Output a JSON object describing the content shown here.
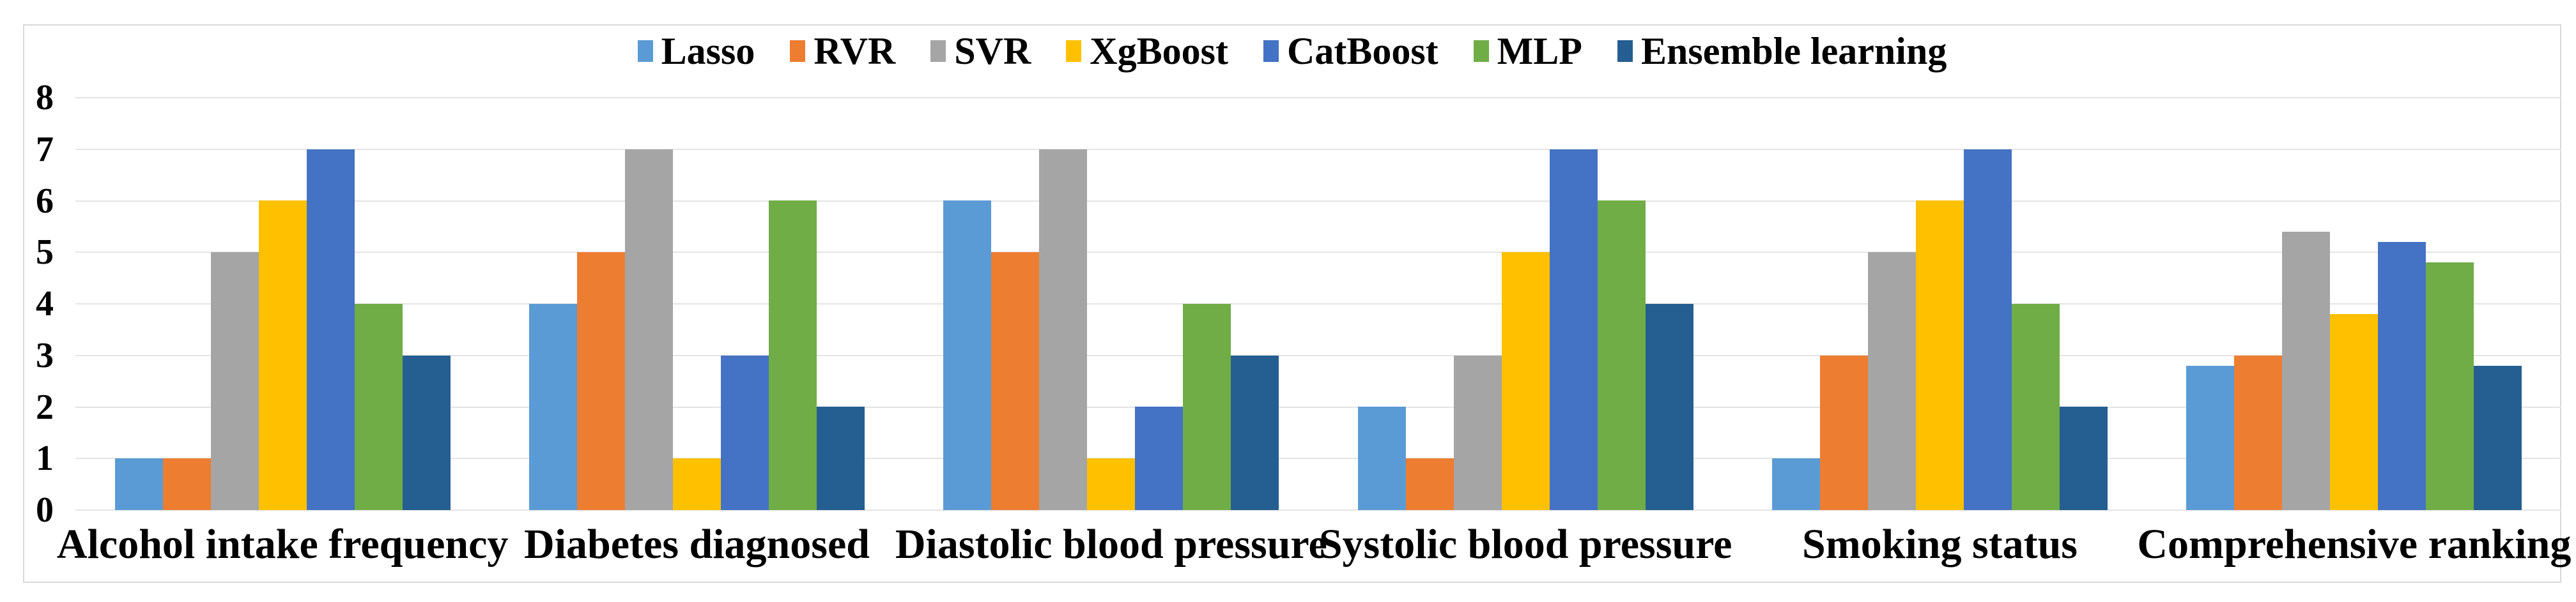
{
  "figure": {
    "background_color": "#ffffff",
    "frame_color": "#d9d9d9",
    "gridline_color": "#e4e4e4",
    "text_color": "#000000"
  },
  "chart_data": {
    "type": "bar",
    "title": "",
    "xlabel": "",
    "ylabel": "",
    "categories": [
      "Alcohol intake frequency",
      "Diabetes diagnosed",
      "Diastolic blood pressure",
      "Systolic blood pressure",
      "Smoking status",
      "Comprehensive ranking"
    ],
    "series": [
      {
        "name": "Lasso",
        "color": "#5B9BD5",
        "values": [
          1,
          4,
          6,
          2,
          1,
          2.8
        ]
      },
      {
        "name": "RVR",
        "color": "#ED7D31",
        "values": [
          1,
          5,
          5,
          1,
          3,
          3.0
        ]
      },
      {
        "name": "SVR",
        "color": "#A5A5A5",
        "values": [
          5,
          7,
          7,
          3,
          5,
          5.4
        ]
      },
      {
        "name": "XgBoost",
        "color": "#FFC000",
        "values": [
          6,
          1,
          1,
          5,
          6,
          3.8
        ]
      },
      {
        "name": "CatBoost",
        "color": "#4472C4",
        "values": [
          7,
          3,
          2,
          7,
          7,
          5.2
        ]
      },
      {
        "name": "MLP",
        "color": "#70AD47",
        "values": [
          4,
          6,
          4,
          6,
          4,
          4.8
        ]
      },
      {
        "name": "Ensemble learning",
        "color": "#255E91",
        "values": [
          3,
          2,
          3,
          4,
          2,
          2.8
        ]
      }
    ],
    "y_axis": {
      "ticks": [
        "0",
        "1",
        "2",
        "3",
        "4",
        "5",
        "6",
        "7",
        "8"
      ],
      "ylim": [
        0,
        8
      ],
      "grid": true
    },
    "legend_position": "top-center"
  }
}
